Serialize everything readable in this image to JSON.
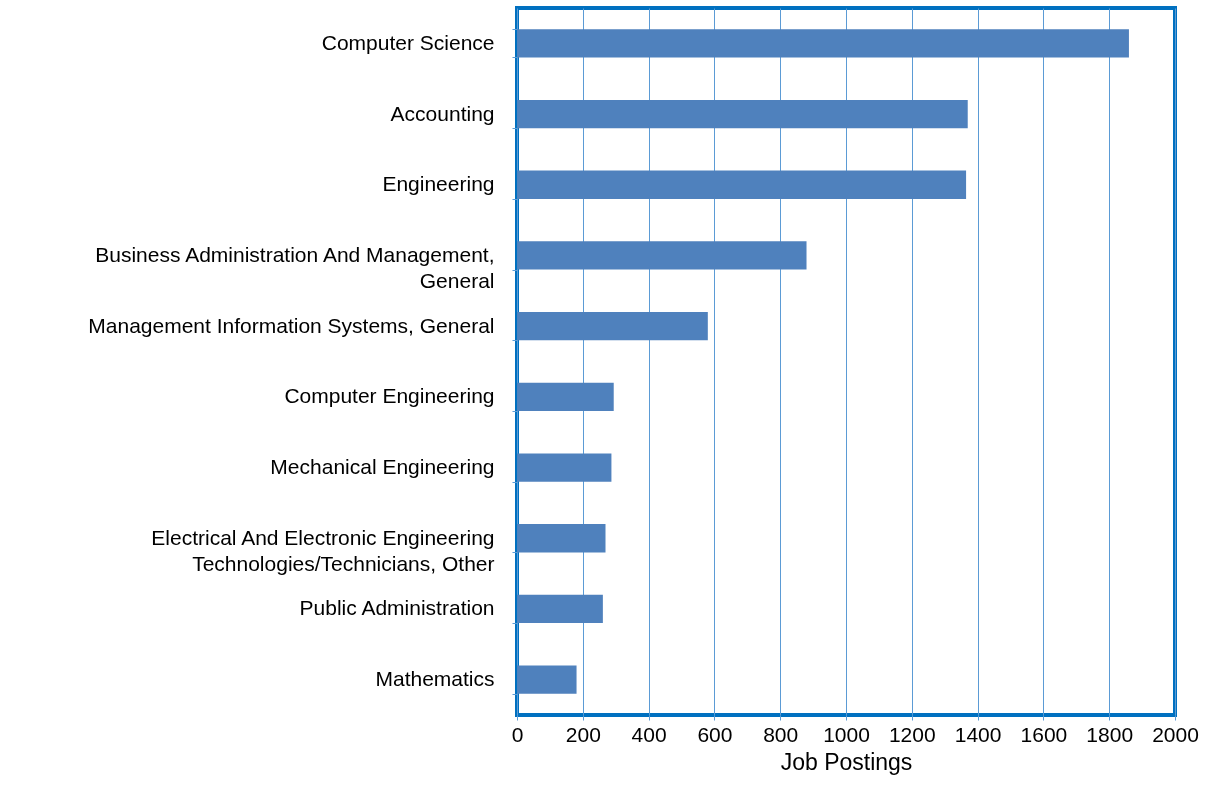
{
  "chart_data": {
    "type": "bar",
    "orientation": "horizontal",
    "xlabel": "Job Postings",
    "categories": [
      "Computer Science",
      "Accounting",
      "Engineering",
      "Business Administration And Management, General",
      "Management Information Systems, General",
      "Computer Engineering",
      "Mechanical Engineering",
      "Electrical And Electronic Engineering Technologies/Technicians, Other",
      "Public Administration",
      "Mathematics"
    ],
    "values": [
      1860,
      1370,
      1365,
      880,
      580,
      294,
      287,
      269,
      261,
      181
    ],
    "color": "#4f81bd",
    "xlim": [
      0,
      2000
    ],
    "xticks": [
      0,
      200,
      400,
      600,
      800,
      1000,
      1200,
      1400,
      1600,
      1800,
      2000
    ],
    "grid": "x"
  }
}
